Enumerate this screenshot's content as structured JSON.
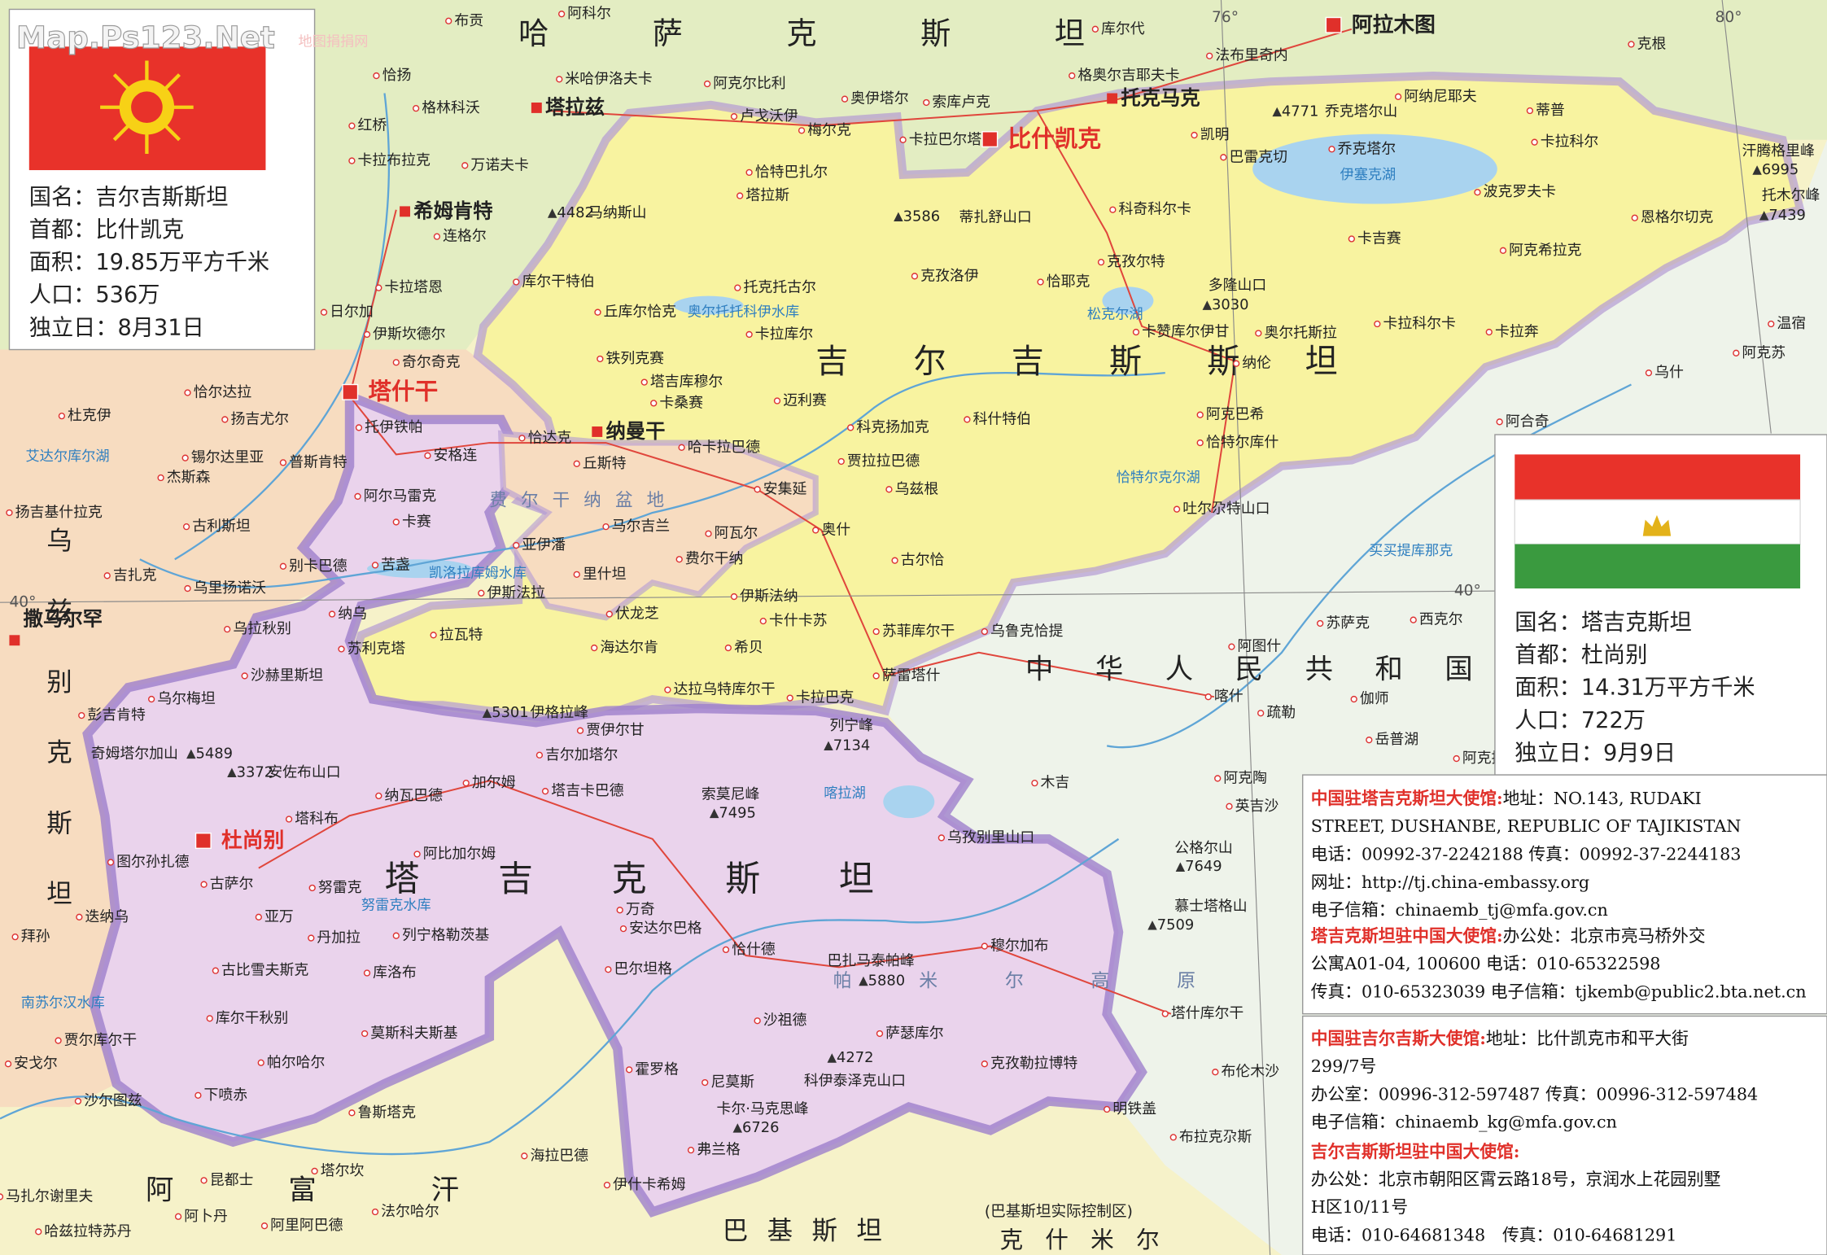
{
  "watermark": "Map.Ps123.Net",
  "watermark_sub": "地图捐捐网",
  "degree_labels": [
    "76°",
    "80°",
    "40°",
    "40°"
  ],
  "countries": [
    "哈萨克斯坦",
    "吉尔吉斯斯坦",
    "塔吉克斯坦",
    "中华人民共和国",
    "阿富汗",
    "巴基斯坦",
    "克什米尔",
    "乌兹别克斯坦"
  ],
  "kashmir_note": "(巴基斯坦实际控制区)",
  "physical_labels": [
    "费尔干纳盆地",
    "帕米尔高原"
  ],
  "capitals": [
    "比什凯克",
    "杜尚别",
    "塔什干",
    "阿拉木图"
  ],
  "major_cities": [
    "塔拉兹",
    "托克马克",
    "希姆肯特",
    "纳曼干",
    "撒马尔罕"
  ],
  "cities": [
    "布贡",
    "阿科尔",
    "库尔代",
    "法布里奇内",
    "克根",
    "恰扬",
    "米哈伊洛夫卡",
    "阿克尔比利",
    "格奥尔吉耶夫卡",
    "阿纳尼耶夫",
    "格林科沃",
    "卢戈沃伊",
    "奥伊塔尔",
    "索库卢克",
    "蒂普",
    "红桥",
    "梅尔克",
    "卡拉巴尔塔",
    "凯明",
    "乔克塔尔",
    "卡拉科尔",
    "卡拉布拉克",
    "万诺夫卡",
    "恰特巴扎尔",
    "巴雷克切",
    "科奇科尔卡",
    "波克罗夫卡",
    "恩格尔切克",
    "塔拉斯",
    "连格尔",
    "卡吉赛",
    "库尔干特伯",
    "克孜洛伊",
    "克孜尔特",
    "恰耶克",
    "阿克希拉克",
    "托克托古尔",
    "卡拉塔恩",
    "日尔加",
    "丘库尔恰克",
    "卡赞库尔伊甘",
    "奥尔托斯拉",
    "卡拉科尔卡",
    "卡拉奔",
    "温宿",
    "伊斯坎德尔",
    "卡拉库尔",
    "阿克苏",
    "奇尔奇克",
    "铁列克赛",
    "纳伦",
    "乌什",
    "恰尔达拉",
    "扬吉尤尔",
    "杜克伊",
    "塔吉库穆尔",
    "卡桑赛",
    "迈利赛",
    "阿克巴希",
    "阿合奇",
    "托伊铁帕",
    "安格连",
    "恰达克",
    "哈卡拉巴德",
    "科克扬加克",
    "科什特伯",
    "恰特尔库什",
    "锡尔达里亚",
    "普斯肯特",
    "丘斯特",
    "贾拉拉巴德",
    "杰斯森",
    "阿尔马雷克",
    "安集延",
    "乌兹根",
    "扬吉基什拉克",
    "卡赛",
    "马尔吉兰",
    "古利斯坦",
    "奥什",
    "吐尔尕特山口",
    "阿瓦尔",
    "亚伊潘",
    "费尔干纳",
    "古尔恰",
    "吉扎克",
    "乌里扬诺沃",
    "别卡巴德",
    "苦盏",
    "里什坦",
    "伊斯法拉",
    "伊斯法纳",
    "纳乌",
    "伏龙芝",
    "卡什卡苏",
    "苏萨克",
    "西克尔",
    "乌拉秋别",
    "苏利克塔",
    "拉瓦特",
    "海达尔肯",
    "希贝",
    "苏菲库尔干",
    "乌鲁克恰提",
    "阿图什",
    "沙赫里斯坦",
    "萨雷塔什",
    "喀什",
    "伽师",
    "乌尔梅坦",
    "达拉乌特库尔干",
    "卡拉巴克",
    "疏勒",
    "彭吉肯特",
    "贾伊尔甘",
    "岳普湖",
    "吉尔加塔尔",
    "阿克提",
    "纳瓦巴德",
    "加尔姆",
    "塔吉卡巴德",
    "阿克陶",
    "木吉",
    "英吉沙",
    "塔科布",
    "乌孜别里山口",
    "阿比加尔姆",
    "图尔孙扎德",
    "古萨尔",
    "努雷克",
    "万奇",
    "安达尔巴格",
    "亚万",
    "迭纳乌",
    "拜孙",
    "丹加拉",
    "列宁格勒茨基",
    "恰什德",
    "巴尔坦格",
    "穆尔加布",
    "古比雪夫斯克",
    "库洛布",
    "库尔干秋别",
    "莫斯科夫斯基",
    "沙祖德",
    "萨瑟库尔",
    "塔什库尔干",
    "贾尔库尔干",
    "帕尔哈尔",
    "霍罗格",
    "尼莫斯",
    "克孜勒拉博特",
    "安戈尔",
    "布伦木沙",
    "下喷赤",
    "沙尔图兹",
    "鲁斯塔克",
    "明铁盖",
    "弗兰格",
    "海拉巴德",
    "布拉克尕斯",
    "塔尔坎",
    "昆都士",
    "马扎尔谢里夫",
    "伊什卡希姆",
    "法尔哈尔",
    "阿卜丹",
    "阿里阿巴德",
    "哈兹拉特苏丹"
  ],
  "water_labels": [
    "伊塞克湖",
    "松克尔湖",
    "奥尔托托科伊水库",
    "艾达尔库尔湖",
    "恰特尔克尔湖",
    "凯洛拉库姆水库",
    "喀拉湖",
    "努雷克水库",
    "南苏尔汉水库",
    "买买提库那克"
  ],
  "peaks": [
    {
      "name": "汗腾格里峰",
      "elevation": 6995
    },
    {
      "name": "托木尔峰",
      "elevation": 7439
    },
    {
      "name": "乔克塔尔山",
      "elevation": 4771
    },
    {
      "name": "马纳斯山",
      "elevation": 4482
    },
    {
      "name": "蒂扎舒山口",
      "elevation": 3586
    },
    {
      "name": "多隆山口",
      "elevation": 3030
    },
    {
      "name": "伊格拉峰",
      "elevation": 5301
    },
    {
      "name": "列宁峰",
      "elevation": 7134
    },
    {
      "name": "奇姆塔尔加山",
      "elevation": 5489
    },
    {
      "name": "安佐布山口",
      "elevation": 3372
    },
    {
      "name": "索莫尼峰",
      "elevation": 7495
    },
    {
      "name": "公格尔山",
      "elevation": 7649
    },
    {
      "name": "慕士塔格山",
      "elevation": 7509
    },
    {
      "name": "巴扎马泰帕峰",
      "elevation": 5880
    },
    {
      "name": "卡尔·马克思峰",
      "elevation": 6726
    },
    {
      "name": "科伊泰泽克山口",
      "elevation": 4272
    }
  ],
  "kyrgyzstan_info": [
    "国名：吉尔吉斯斯坦",
    "首都：比什凯克",
    "面积：19.85万平方千米",
    "人口：536万",
    "独立日：8月31日"
  ],
  "tajikistan_info": [
    "国名：塔吉克斯坦",
    "首都：杜尚别",
    "面积：14.31万平方千米",
    "人口：722万",
    "独立日：9月9日"
  ],
  "embassies": [
    {
      "heading": "中国驻塔吉克斯坦大使馆:",
      "lines": [
        "地址：NO.143, RUDAKI",
        "STREET, DUSHANBE, REPUBLIC OF TAJIKISTAN",
        "电话：00992-37-2242188 传真：00992-37-2244183",
        "网址：http://tj.china-embassy.org",
        "电子信箱：chinaemb_tj@mfa.gov.cn"
      ]
    },
    {
      "heading": "塔吉克斯坦驻中国大使馆:",
      "lines": [
        "办公处：北京市亮马桥外交",
        "公寓A01-04, 100600 电话：010-65322598",
        "传真：010-65323039 电子信箱：tjkemb@public2.bta.net.cn"
      ]
    },
    {
      "heading": "中国驻吉尔吉斯大使馆:",
      "lines": [
        "地址：比什凯克市和平大街",
        "299/7号",
        "办公室：00996-312-597487 传真：00996-312-597484",
        "电子信箱：chinaemb_kg@mfa.gov.cn"
      ]
    },
    {
      "heading": "吉尔吉斯斯坦驻中国大使馆:",
      "lines": [
        "办公处：北京市朝阳区霄云路18号，京润水上花园别墅",
        "H区10/11号",
        "电话：010-64681348　传真：010-64681291"
      ]
    }
  ]
}
